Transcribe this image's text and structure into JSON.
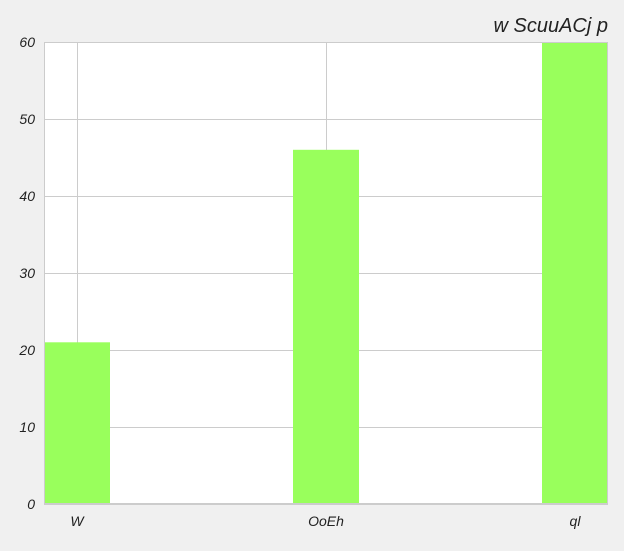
{
  "chart_data": {
    "type": "bar",
    "title": "w ScuuACj p",
    "xlabel": "",
    "ylabel": "",
    "categories": [
      "W",
      "OoEh",
      "ql"
    ],
    "values": [
      21,
      46,
      60
    ],
    "ylim": [
      0,
      60
    ],
    "yticks": [
      0,
      10,
      20,
      30,
      40,
      50,
      60
    ],
    "grid": true,
    "legend": "none",
    "colors": {
      "bar": "#99ff5c",
      "background": "#f0f0f0",
      "plot_background": "#ffffff",
      "grid": "#cccccc",
      "text": "#222222"
    }
  }
}
